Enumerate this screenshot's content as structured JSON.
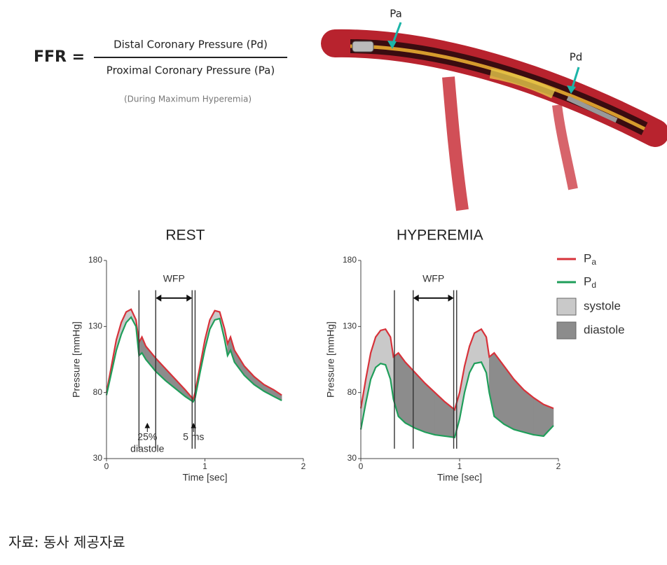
{
  "formula": {
    "lhs": "FFR =",
    "numerator": "Distal Coronary Pressure (Pd)",
    "denominator": "Proximal Coronary Pressure (Pa)",
    "note": "(During Maximum Hyperemia)"
  },
  "illustration": {
    "labels": [
      "Pa",
      "Pd"
    ]
  },
  "chart_data": [
    {
      "type": "line",
      "title": "REST",
      "xlabel": "Time [sec]",
      "ylabel": "Pressure [mmHg]",
      "x": [
        0,
        0.05,
        0.1,
        0.15,
        0.2,
        0.25,
        0.3,
        0.33,
        0.36,
        0.4,
        0.5,
        0.6,
        0.7,
        0.8,
        0.88,
        0.9,
        0.95,
        1.0,
        1.05,
        1.1,
        1.15,
        1.2,
        1.23,
        1.26,
        1.3,
        1.4,
        1.5,
        1.6,
        1.7,
        1.78
      ],
      "series": [
        {
          "color": "#d7323a",
          "values": [
            80,
            100,
            120,
            133,
            141,
            143,
            135,
            118,
            122,
            115,
            106,
            98,
            90,
            82,
            75,
            80,
            100,
            120,
            135,
            142,
            141,
            128,
            117,
            122,
            112,
            100,
            92,
            86,
            82,
            78
          ]
        },
        {
          "color": "#1f9e5a",
          "values": [
            78,
            95,
            112,
            124,
            133,
            137,
            130,
            108,
            110,
            105,
            96,
            89,
            83,
            77,
            73,
            76,
            95,
            113,
            128,
            135,
            136,
            120,
            108,
            112,
            103,
            93,
            86,
            81,
            77,
            74
          ]
        }
      ],
      "xlim": [
        0,
        2
      ],
      "ylim": [
        30,
        180
      ],
      "xticks": [
        0,
        1,
        2
      ],
      "yticks": [
        30,
        80,
        130,
        180
      ],
      "markers": [
        0.33,
        0.5,
        0.87,
        0.9
      ],
      "wfp_label": "WFP",
      "annotations": [
        [
          "25%",
          "diastole"
        ],
        [
          "5 ms"
        ]
      ]
    },
    {
      "type": "line",
      "title": "HYPEREMIA",
      "xlabel": "Time [sec]",
      "ylabel": "Pressure [mmHg]",
      "x": [
        0,
        0.05,
        0.1,
        0.15,
        0.2,
        0.25,
        0.3,
        0.33,
        0.38,
        0.45,
        0.55,
        0.65,
        0.75,
        0.85,
        0.95,
        1.0,
        1.05,
        1.1,
        1.15,
        1.22,
        1.27,
        1.3,
        1.35,
        1.45,
        1.55,
        1.65,
        1.75,
        1.85,
        1.95
      ],
      "series": [
        {
          "name": "Pa",
          "color": "#d7323a",
          "values": [
            68,
            90,
            110,
            122,
            127,
            128,
            122,
            107,
            110,
            103,
            95,
            87,
            80,
            73,
            67,
            80,
            100,
            115,
            125,
            128,
            122,
            107,
            110,
            100,
            90,
            82,
            76,
            71,
            68
          ]
        },
        {
          "name": "Pd",
          "color": "#1f9e5a",
          "values": [
            52,
            72,
            90,
            99,
            102,
            101,
            90,
            75,
            62,
            57,
            53,
            50,
            48,
            47,
            46,
            60,
            80,
            95,
            102,
            103,
            95,
            80,
            62,
            56,
            52,
            50,
            48,
            47,
            55
          ]
        }
      ],
      "xlim": [
        0,
        2
      ],
      "ylim": [
        30,
        180
      ],
      "xticks": [
        0,
        1,
        2
      ],
      "yticks": [
        30,
        80,
        130,
        180
      ],
      "markers": [
        0.34,
        0.53,
        0.94,
        0.97
      ],
      "wfp_label": "WFP",
      "legend_areas": [
        {
          "label": "systole",
          "color": "#c9c9c9"
        },
        {
          "label": "diastole",
          "color": "#8c8c8c"
        }
      ]
    }
  ],
  "source": "자료: 동사 제공자료"
}
